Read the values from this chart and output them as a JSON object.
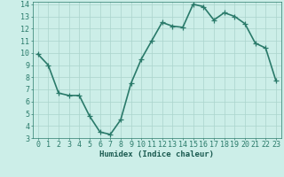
{
  "x": [
    0,
    1,
    2,
    3,
    4,
    5,
    6,
    7,
    8,
    9,
    10,
    11,
    12,
    13,
    14,
    15,
    16,
    17,
    18,
    19,
    20,
    21,
    22,
    23
  ],
  "y": [
    9.9,
    9.0,
    6.7,
    6.5,
    6.5,
    4.8,
    3.5,
    3.3,
    4.5,
    7.5,
    9.5,
    11.0,
    12.5,
    12.2,
    12.1,
    14.0,
    13.8,
    12.7,
    13.3,
    13.0,
    12.4,
    10.8,
    10.4,
    7.7
  ],
  "xlabel": "Humidex (Indice chaleur)",
  "line_color": "#2a7a6a",
  "marker_color": "#2a7a6a",
  "bg_color": "#cceee8",
  "grid_color": "#aad4cc",
  "axes_color": "#2a7a6a",
  "text_color": "#1a5a50",
  "xlim": [
    -0.5,
    23.5
  ],
  "ylim": [
    3,
    14.2
  ],
  "xticks": [
    0,
    1,
    2,
    3,
    4,
    5,
    6,
    7,
    8,
    9,
    10,
    11,
    12,
    13,
    14,
    15,
    16,
    17,
    18,
    19,
    20,
    21,
    22,
    23
  ],
  "yticks": [
    3,
    4,
    5,
    6,
    7,
    8,
    9,
    10,
    11,
    12,
    13,
    14
  ],
  "xlabel_fontsize": 6.5,
  "tick_fontsize": 6,
  "line_width": 1.2,
  "marker_size": 4
}
